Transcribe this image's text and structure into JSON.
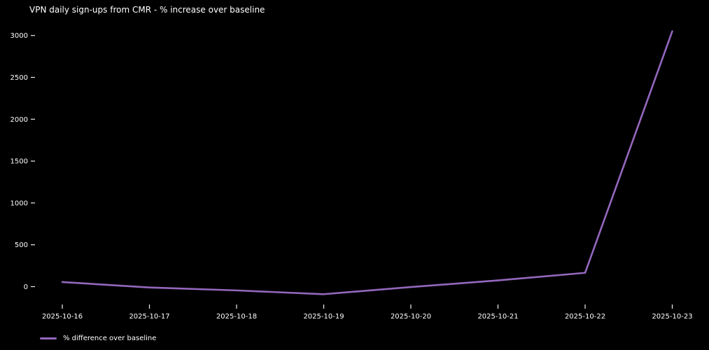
{
  "chart": {
    "title": "VPN daily sign-ups from CMR - % increase over baseline"
  },
  "legend": {
    "label": "% difference over baseline"
  },
  "colors": {
    "background": "#000000",
    "line": "#9467bd",
    "text": "#ffffff",
    "tick": "#eeeeee"
  },
  "chart_data": {
    "type": "line",
    "title": "VPN daily sign-ups from CMR - % increase over baseline",
    "x": [
      "2025-10-16",
      "2025-10-17",
      "2025-10-18",
      "2025-10-19",
      "2025-10-20",
      "2025-10-21",
      "2025-10-22",
      "2025-10-23"
    ],
    "series": [
      {
        "name": "% difference over baseline",
        "values": [
          55,
          -10,
          -45,
          -90,
          -5,
          75,
          165,
          3050
        ]
      }
    ],
    "xlabel": "",
    "ylabel": "",
    "yticks": [
      0,
      500,
      1000,
      1500,
      2000,
      2500,
      3000
    ],
    "ylim": [
      -230,
      3200
    ],
    "grid": false,
    "legend_position": "lower-left",
    "background": "#000000",
    "line_color": "#9467bd"
  }
}
